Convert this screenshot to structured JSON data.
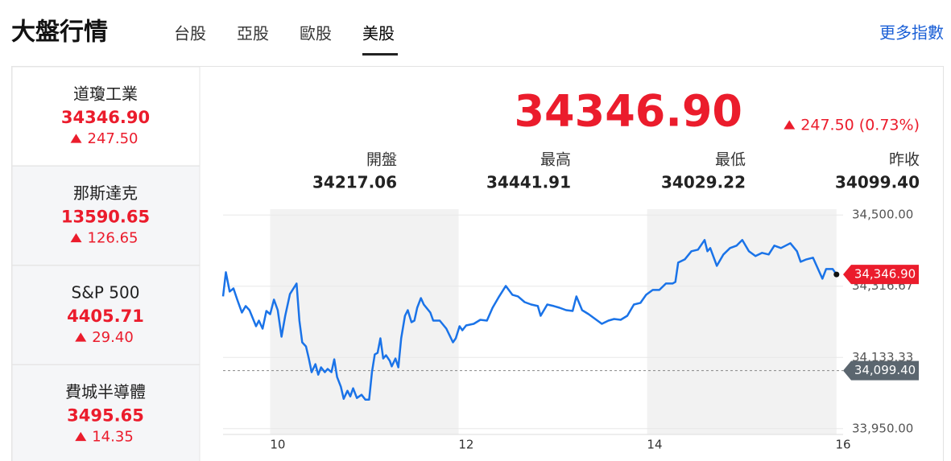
{
  "header": {
    "title": "大盤行情",
    "tabs": [
      {
        "label": "台股",
        "active": false
      },
      {
        "label": "亞股",
        "active": false
      },
      {
        "label": "歐股",
        "active": false
      },
      {
        "label": "美股",
        "active": true
      }
    ],
    "more": "更多指數"
  },
  "indices": [
    {
      "name": "道瓊工業",
      "price": "34346.90",
      "change": "247.50",
      "selected": true
    },
    {
      "name": "那斯達克",
      "price": "13590.65",
      "change": "126.65",
      "selected": false
    },
    {
      "name": "S&P 500",
      "price": "4405.71",
      "change": "29.40",
      "selected": false
    },
    {
      "name": "費城半導體",
      "price": "3495.65",
      "change": "14.35",
      "selected": false
    }
  ],
  "quote": {
    "price": "34346.90",
    "change": "247.50 (0.73%)",
    "stats": [
      {
        "label": "開盤",
        "value": "34217.06"
      },
      {
        "label": "最高",
        "value": "34441.91"
      },
      {
        "label": "最低",
        "value": "34029.22"
      },
      {
        "label": "昨收",
        "value": "34099.40"
      }
    ]
  },
  "chart_data": {
    "type": "line",
    "color": "#1a73e8",
    "up_color": "#eb1c2c",
    "x": [
      9.42,
      9.45,
      9.49,
      9.53,
      9.57,
      9.62,
      9.66,
      9.7,
      9.77,
      9.8,
      9.84,
      9.88,
      9.92,
      9.96,
      10.0,
      10.04,
      10.08,
      10.13,
      10.2,
      10.23,
      10.26,
      10.3,
      10.33,
      10.36,
      10.4,
      10.43,
      10.46,
      10.5,
      10.53,
      10.57,
      10.6,
      10.63,
      10.67,
      10.7,
      10.74,
      10.77,
      10.8,
      10.84,
      10.89,
      10.93,
      10.97,
      11.0,
      11.03,
      11.06,
      11.09,
      11.12,
      11.15,
      11.19,
      11.21,
      11.25,
      11.28,
      11.31,
      11.35,
      11.38,
      11.42,
      11.45,
      11.48,
      11.52,
      11.55,
      11.62,
      11.65,
      11.72,
      11.79,
      11.86,
      11.89,
      11.93,
      11.96,
      12.0,
      12.08,
      12.15,
      12.22,
      12.28,
      12.35,
      12.42,
      12.49,
      12.55,
      12.62,
      12.69,
      12.76,
      12.79,
      12.86,
      12.93,
      12.99,
      13.06,
      13.13,
      13.17,
      13.23,
      13.3,
      13.37,
      13.44,
      13.51,
      13.57,
      13.64,
      13.71,
      13.78,
      13.85,
      13.91,
      13.98,
      14.05,
      14.12,
      14.19,
      14.22,
      14.25,
      14.32,
      14.39,
      14.46,
      14.53,
      14.56,
      14.59,
      14.66,
      14.73,
      14.8,
      14.87,
      14.93,
      15.0,
      15.07,
      15.14,
      15.21,
      15.27,
      15.34,
      15.44,
      15.51,
      15.55,
      15.61,
      15.68,
      15.75,
      15.78,
      15.82,
      15.89,
      15.93
    ],
    "values": [
      34290.4,
      34352.6,
      34302.8,
      34311.1,
      34282.1,
      34248.9,
      34265.5,
      34255.1,
      34213.6,
      34228.1,
      34207.4,
      34253.0,
      34244.7,
      34282.1,
      34255.1,
      34186.6,
      34240.6,
      34296.6,
      34323.6,
      34228.1,
      34172.1,
      34161.7,
      34130.6,
      34095.3,
      34116.0,
      34089.0,
      34107.7,
      34095.3,
      34103.6,
      34095.3,
      34128.5,
      34082.8,
      34057.9,
      34026.8,
      34047.5,
      34033.0,
      34053.8,
      34028.9,
      34037.2,
      34024.7,
      34024.7,
      34095.3,
      34140.9,
      34145.1,
      34182.5,
      34130.6,
      34138.9,
      34124.3,
      34110.2,
      34130.6,
      34107.7,
      34182.5,
      34240.6,
      34255.1,
      34224.0,
      34228.1,
      34261.3,
      34286.2,
      34269.6,
      34248.9,
      34228.1,
      34228.1,
      34207.4,
      34172.1,
      34182.5,
      34213.6,
      34203.2,
      34215.7,
      34219.8,
      34230.2,
      34228.1,
      34261.3,
      34290.4,
      34317.4,
      34294.5,
      34290.4,
      34275.8,
      34269.6,
      34265.5,
      34240.6,
      34269.6,
      34265.5,
      34261.3,
      34255.1,
      34253.0,
      34290.4,
      34255.1,
      34244.7,
      34232.3,
      34219.8,
      34228.1,
      34232.3,
      34230.2,
      34240.6,
      34269.6,
      34273.8,
      34294.5,
      34307.0,
      34307.0,
      34323.6,
      34323.6,
      34327.7,
      34377.5,
      34385.8,
      34406.6,
      34410.8,
      34435.7,
      34406.6,
      34414.9,
      34369.2,
      34398.3,
      34414.9,
      34421.1,
      34435.7,
      34406.6,
      34394.2,
      34402.5,
      34398.3,
      34421.1,
      34414.9,
      34427.4,
      34406.6,
      34379.6,
      34385.8,
      34390.0,
      34352.6,
      34336.0,
      34360.9,
      34360.9,
      34346.9
    ],
    "xlim": [
      9.42,
      16.0
    ],
    "xticks": [
      10,
      12,
      14,
      16
    ],
    "ylim": [
      33935,
      34515
    ],
    "yticks": [
      {
        "value": 33950,
        "label": "33,950.00"
      },
      {
        "value": 34133.33,
        "label": "34,133.33"
      },
      {
        "value": 34316.67,
        "label": "34,316.67"
      },
      {
        "value": 34500,
        "label": "34,500.00"
      }
    ],
    "shaded_ranges": [
      [
        9.92,
        11.92
      ],
      [
        13.92,
        15.93
      ]
    ],
    "last_price": {
      "value": 34346.9,
      "label": "34,346.90"
    },
    "prev_close": {
      "value": 34099.4,
      "label": "34,099.40"
    }
  }
}
